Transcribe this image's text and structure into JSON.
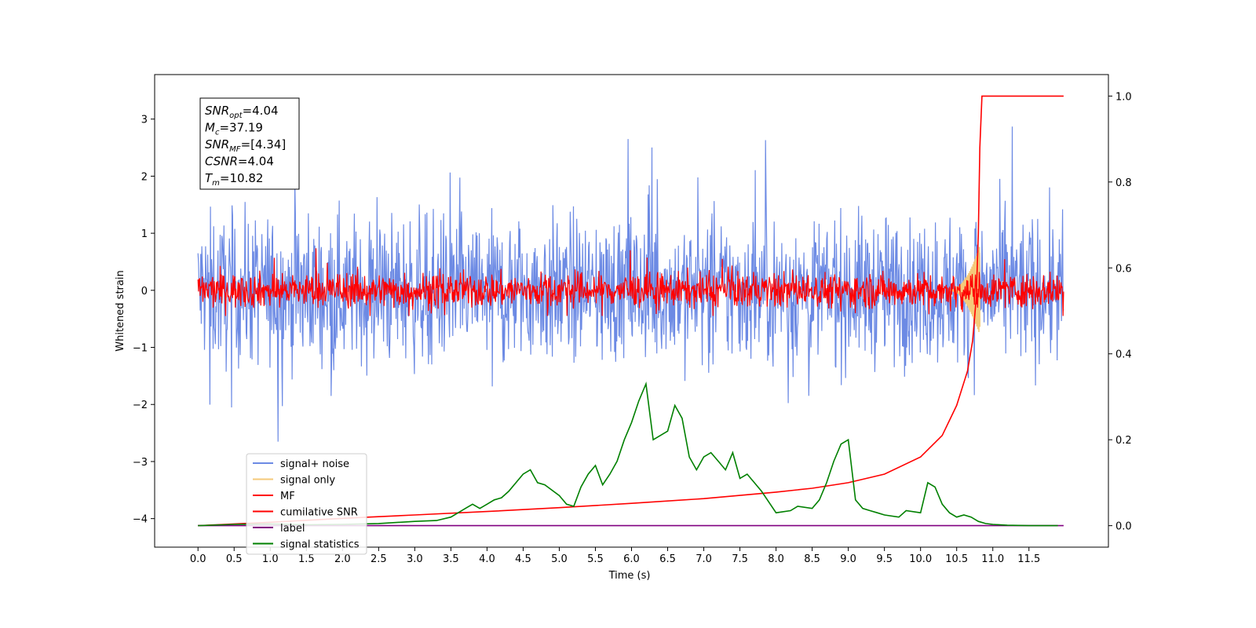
{
  "chart_data": {
    "type": "line",
    "xlabel": "Time (s)",
    "ylabel": "Whitened strain",
    "x_ticks": [
      "0.0",
      "0.5",
      "1.0",
      "1.5",
      "2.0",
      "2.5",
      "3.0",
      "3.5",
      "4.0",
      "4.5",
      "5.0",
      "5.5",
      "6.0",
      "6.5",
      "7.0",
      "7.5",
      "8.0",
      "8.5",
      "9.0",
      "9.5",
      "10.0",
      "10.5",
      "11.0",
      "11.5"
    ],
    "y_ticks": [
      "3",
      "2",
      "1",
      "0",
      "−1",
      "−2",
      "−3",
      "−4"
    ],
    "y2_ticks": [
      "1.0",
      "0.8",
      "0.6",
      "0.4",
      "0.2",
      "0.0"
    ],
    "xlim": [
      -0.6,
      12.6
    ],
    "ylim": [
      -4.5,
      3.78
    ],
    "y2lim": [
      -0.05,
      1.05
    ],
    "grid": false,
    "legend_position": "lower-left",
    "annotation": {
      "lines": [
        {
          "base": "SNR",
          "sub": "opt",
          "value": "=4.04"
        },
        {
          "base": "M",
          "sub": "c",
          "value": "=37.19"
        },
        {
          "base": "SNR",
          "sub": "MF",
          "value": "=[4.34]"
        },
        {
          "base": "CSNR",
          "sub": "",
          "value": "=4.04"
        },
        {
          "base": "T",
          "sub": "m",
          "value": "=10.82"
        }
      ]
    },
    "series": [
      {
        "name": "signal+ noise",
        "axis": "left",
        "color": "#6c8ae4",
        "kind": "noise",
        "center": 0.0,
        "spread": 0.85,
        "min": -4.15,
        "max": 3.4
      },
      {
        "name": "signal only",
        "axis": "left",
        "color": "#f5c97a",
        "kind": "chirp",
        "x_end": 10.82,
        "peak": 0.8
      },
      {
        "name": "MF",
        "axis": "left",
        "color": "#ff0000",
        "kind": "noise",
        "center": 0.0,
        "spread": 0.2,
        "min": -0.45,
        "max": 1.0
      },
      {
        "name": "cumilative SNR",
        "axis": "right",
        "color": "#ff0000",
        "kind": "curve",
        "x": [
          0.0,
          1.0,
          2.0,
          3.0,
          4.0,
          5.0,
          6.0,
          7.0,
          8.0,
          8.5,
          9.0,
          9.5,
          10.0,
          10.3,
          10.5,
          10.65,
          10.72,
          10.77,
          10.8,
          10.82,
          10.85,
          11.0,
          11.5,
          11.98
        ],
        "y": [
          0.0,
          0.008,
          0.017,
          0.025,
          0.033,
          0.042,
          0.052,
          0.063,
          0.078,
          0.087,
          0.1,
          0.12,
          0.16,
          0.21,
          0.28,
          0.36,
          0.43,
          0.53,
          0.68,
          0.88,
          1.0,
          1.0,
          1.0,
          1.0
        ]
      },
      {
        "name": "label",
        "axis": "right",
        "color": "#800080",
        "kind": "flat",
        "x": [
          0.0,
          11.98
        ],
        "y": [
          0.0,
          0.0
        ]
      },
      {
        "name": "signal statistics",
        "axis": "right",
        "color": "#008000",
        "kind": "curve",
        "x": [
          0.0,
          0.5,
          1.0,
          1.5,
          2.0,
          2.5,
          3.0,
          3.3,
          3.5,
          3.7,
          3.8,
          3.9,
          4.0,
          4.1,
          4.2,
          4.3,
          4.5,
          4.6,
          4.7,
          4.8,
          5.0,
          5.1,
          5.2,
          5.3,
          5.4,
          5.5,
          5.6,
          5.7,
          5.8,
          5.9,
          6.0,
          6.1,
          6.2,
          6.3,
          6.4,
          6.5,
          6.6,
          6.7,
          6.8,
          6.9,
          7.0,
          7.1,
          7.2,
          7.3,
          7.4,
          7.5,
          7.6,
          7.7,
          7.8,
          8.0,
          8.2,
          8.3,
          8.5,
          8.6,
          8.7,
          8.8,
          8.9,
          9.0,
          9.1,
          9.2,
          9.3,
          9.4,
          9.5,
          9.7,
          9.8,
          10.0,
          10.1,
          10.2,
          10.3,
          10.4,
          10.5,
          10.6,
          10.7,
          10.8,
          10.9,
          11.0,
          11.2,
          11.5,
          11.9
        ],
        "y": [
          0.0,
          0.003,
          0.004,
          0.002,
          0.003,
          0.005,
          0.01,
          0.012,
          0.02,
          0.04,
          0.05,
          0.04,
          0.05,
          0.06,
          0.065,
          0.08,
          0.12,
          0.13,
          0.1,
          0.095,
          0.07,
          0.05,
          0.045,
          0.09,
          0.12,
          0.14,
          0.095,
          0.12,
          0.15,
          0.2,
          0.24,
          0.29,
          0.33,
          0.2,
          0.21,
          0.22,
          0.28,
          0.25,
          0.16,
          0.13,
          0.16,
          0.17,
          0.15,
          0.13,
          0.17,
          0.11,
          0.12,
          0.1,
          0.08,
          0.03,
          0.035,
          0.045,
          0.04,
          0.06,
          0.1,
          0.15,
          0.19,
          0.2,
          0.06,
          0.04,
          0.035,
          0.03,
          0.025,
          0.02,
          0.035,
          0.03,
          0.1,
          0.09,
          0.05,
          0.03,
          0.02,
          0.025,
          0.02,
          0.01,
          0.005,
          0.003,
          0.001,
          0.0,
          0.0
        ]
      }
    ]
  }
}
